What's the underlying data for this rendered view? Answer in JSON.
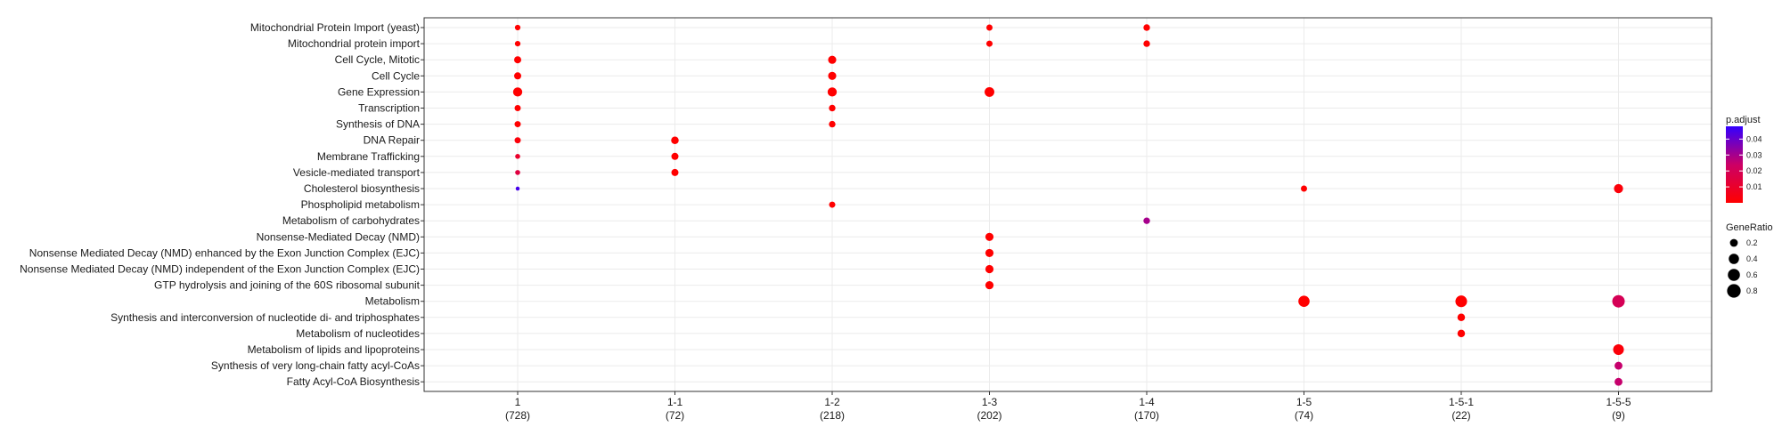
{
  "chart_data": {
    "type": "scatter",
    "title": "",
    "xlabel": "",
    "ylabel": "",
    "grid": true,
    "legend_position": "right",
    "x_categories": [
      "1",
      "1-1",
      "1-2",
      "1-3",
      "1-4",
      "1-5",
      "1-5-1",
      "1-5-5"
    ],
    "x_counts": [
      "(728)",
      "(72)",
      "(218)",
      "(202)",
      "(170)",
      "(74)",
      "(22)",
      "(9)"
    ],
    "y_categories": [
      "Mitochondrial Protein Import (yeast)",
      "Mitochondrial protein import",
      "Cell Cycle, Mitotic",
      "Cell Cycle",
      "Gene Expression",
      "Transcription",
      "Synthesis of DNA",
      "DNA Repair",
      "Membrane Trafficking",
      "Vesicle-mediated transport",
      "Cholesterol biosynthesis",
      "Phospholipid metabolism",
      "Metabolism of carbohydrates",
      "Nonsense-Mediated Decay (NMD)",
      "Nonsense Mediated Decay (NMD) enhanced by the Exon Junction Complex (EJC)",
      "Nonsense Mediated Decay (NMD) independent of the Exon Junction Complex (EJC)",
      "GTP hydrolysis and joining of the 60S ribosomal subunit",
      "Metabolism",
      "Synthesis and interconversion of nucleotide di- and triphosphates",
      "Metabolism of nucleotides",
      "Metabolism of lipids and lipoproteins",
      "Synthesis of very long-chain fatty acyl-CoAs",
      "Fatty Acyl-CoA Biosynthesis"
    ],
    "points": [
      {
        "x": "1",
        "y": "Mitochondrial Protein Import (yeast)",
        "gene_ratio": 0.07,
        "p_adjust": 0.0
      },
      {
        "x": "1",
        "y": "Mitochondrial protein import",
        "gene_ratio": 0.07,
        "p_adjust": 0.0
      },
      {
        "x": "1",
        "y": "Cell Cycle, Mitotic",
        "gene_ratio": 0.15,
        "p_adjust": 0.0
      },
      {
        "x": "1",
        "y": "Cell Cycle",
        "gene_ratio": 0.15,
        "p_adjust": 0.0
      },
      {
        "x": "1",
        "y": "Gene Expression",
        "gene_ratio": 0.3,
        "p_adjust": 0.0
      },
      {
        "x": "1",
        "y": "Transcription",
        "gene_ratio": 0.1,
        "p_adjust": 0.0
      },
      {
        "x": "1",
        "y": "Synthesis of DNA",
        "gene_ratio": 0.1,
        "p_adjust": 0.0
      },
      {
        "x": "1",
        "y": "DNA Repair",
        "gene_ratio": 0.1,
        "p_adjust": 0.002
      },
      {
        "x": "1",
        "y": "Membrane Trafficking",
        "gene_ratio": 0.05,
        "p_adjust": 0.01
      },
      {
        "x": "1",
        "y": "Vesicle-mediated transport",
        "gene_ratio": 0.05,
        "p_adjust": 0.015
      },
      {
        "x": "1",
        "y": "Cholesterol biosynthesis",
        "gene_ratio": 0.02,
        "p_adjust": 0.045
      },
      {
        "x": "1-1",
        "y": "DNA Repair",
        "gene_ratio": 0.18,
        "p_adjust": 0.0
      },
      {
        "x": "1-1",
        "y": "Membrane Trafficking",
        "gene_ratio": 0.15,
        "p_adjust": 0.0
      },
      {
        "x": "1-1",
        "y": "Vesicle-mediated transport",
        "gene_ratio": 0.15,
        "p_adjust": 0.0
      },
      {
        "x": "1-2",
        "y": "Cell Cycle, Mitotic",
        "gene_ratio": 0.22,
        "p_adjust": 0.0
      },
      {
        "x": "1-2",
        "y": "Cell Cycle",
        "gene_ratio": 0.22,
        "p_adjust": 0.0
      },
      {
        "x": "1-2",
        "y": "Gene Expression",
        "gene_ratio": 0.3,
        "p_adjust": 0.0
      },
      {
        "x": "1-2",
        "y": "Transcription",
        "gene_ratio": 0.12,
        "p_adjust": 0.0
      },
      {
        "x": "1-2",
        "y": "Synthesis of DNA",
        "gene_ratio": 0.12,
        "p_adjust": 0.0
      },
      {
        "x": "1-2",
        "y": "Phospholipid metabolism",
        "gene_ratio": 0.1,
        "p_adjust": 0.0
      },
      {
        "x": "1-3",
        "y": "Mitochondrial Protein Import (yeast)",
        "gene_ratio": 0.1,
        "p_adjust": 0.0
      },
      {
        "x": "1-3",
        "y": "Mitochondrial protein import",
        "gene_ratio": 0.1,
        "p_adjust": 0.0
      },
      {
        "x": "1-3",
        "y": "Gene Expression",
        "gene_ratio": 0.35,
        "p_adjust": 0.0
      },
      {
        "x": "1-3",
        "y": "Nonsense-Mediated Decay (NMD)",
        "gene_ratio": 0.22,
        "p_adjust": 0.0
      },
      {
        "x": "1-3",
        "y": "Nonsense Mediated Decay (NMD) enhanced by the Exon Junction Complex (EJC)",
        "gene_ratio": 0.22,
        "p_adjust": 0.0
      },
      {
        "x": "1-3",
        "y": "Nonsense Mediated Decay (NMD) independent of the Exon Junction Complex (EJC)",
        "gene_ratio": 0.22,
        "p_adjust": 0.0
      },
      {
        "x": "1-3",
        "y": "GTP hydrolysis and joining of the 60S ribosomal subunit",
        "gene_ratio": 0.22,
        "p_adjust": 0.0
      },
      {
        "x": "1-4",
        "y": "Mitochondrial Protein Import (yeast)",
        "gene_ratio": 0.12,
        "p_adjust": 0.0
      },
      {
        "x": "1-4",
        "y": "Mitochondrial protein import",
        "gene_ratio": 0.12,
        "p_adjust": 0.0
      },
      {
        "x": "1-4",
        "y": "Metabolism of carbohydrates",
        "gene_ratio": 0.12,
        "p_adjust": 0.03
      },
      {
        "x": "1-5",
        "y": "Cholesterol biosynthesis",
        "gene_ratio": 0.1,
        "p_adjust": 0.0
      },
      {
        "x": "1-5",
        "y": "Metabolism",
        "gene_ratio": 0.5,
        "p_adjust": 0.0
      },
      {
        "x": "1-5-1",
        "y": "Metabolism",
        "gene_ratio": 0.55,
        "p_adjust": 0.0
      },
      {
        "x": "1-5-1",
        "y": "Synthesis and interconversion of nucleotide di- and triphosphates",
        "gene_ratio": 0.18,
        "p_adjust": 0.0
      },
      {
        "x": "1-5-1",
        "y": "Metabolism of nucleotides",
        "gene_ratio": 0.18,
        "p_adjust": 0.0
      },
      {
        "x": "1-5-5",
        "y": "Cholesterol biosynthesis",
        "gene_ratio": 0.3,
        "p_adjust": 0.002
      },
      {
        "x": "1-5-5",
        "y": "Metabolism",
        "gene_ratio": 0.65,
        "p_adjust": 0.02
      },
      {
        "x": "1-5-5",
        "y": "Metabolism of lipids and lipoproteins",
        "gene_ratio": 0.45,
        "p_adjust": 0.002
      },
      {
        "x": "1-5-5",
        "y": "Synthesis of very long-chain fatty acyl-CoAs",
        "gene_ratio": 0.2,
        "p_adjust": 0.025
      },
      {
        "x": "1-5-5",
        "y": "Fatty Acyl-CoA Biosynthesis",
        "gene_ratio": 0.2,
        "p_adjust": 0.025
      }
    ],
    "color_legend": {
      "title": "p.adjust",
      "ticks": [
        0.04,
        0.03,
        0.02,
        0.01
      ],
      "tick_labels": [
        "0.04",
        "0.03",
        "0.02",
        "0.01"
      ],
      "range": [
        0.0,
        0.048
      ],
      "low_color": "#ff0000",
      "high_color": "#3300ff"
    },
    "size_legend": {
      "title": "GeneRatio",
      "values": [
        0.2,
        0.4,
        0.6,
        0.8
      ],
      "labels": [
        "0.2",
        "0.4",
        "0.6",
        "0.8"
      ]
    },
    "colors": {
      "panel_border": "#333333",
      "grid": "#ebebeb",
      "text": "#1a1a1a"
    }
  }
}
